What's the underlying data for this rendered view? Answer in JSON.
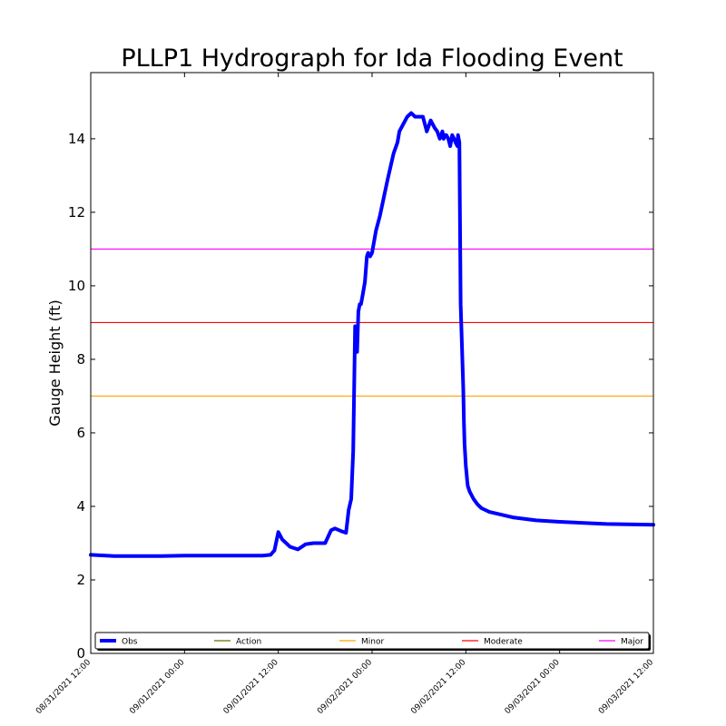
{
  "chart_data": {
    "type": "line",
    "title": "PLLP1 Hydrograph for Ida Flooding Event",
    "xlabel": "",
    "ylabel": "Gauge Height (ft)",
    "xlim": [
      "08/31/2021 12:00",
      "09/03/2021 12:00"
    ],
    "ylim": [
      0,
      15.8
    ],
    "yticks": [
      0,
      2,
      4,
      6,
      8,
      10,
      12,
      14
    ],
    "xticks": [
      "08/31/2021 12:00",
      "09/01/2021 00:00",
      "09/01/2021 12:00",
      "09/02/2021 00:00",
      "09/02/2021 12:00",
      "09/03/2021 00:00",
      "09/03/2021 12:00"
    ],
    "grid": false,
    "legend_position": "bottom",
    "series": [
      {
        "name": "Obs",
        "color": "#0000ff",
        "x": [
          "08/31/2021 12:00",
          "08/31/2021 15:00",
          "08/31/2021 21:00",
          "09/01/2021 00:00",
          "09/01/2021 06:00",
          "09/01/2021 10:00",
          "09/01/2021 11:00",
          "09/01/2021 11:30",
          "09/01/2021 12:00",
          "09/01/2021 12:30",
          "09/01/2021 13:30",
          "09/01/2021 14:30",
          "09/01/2021 15:30",
          "09/01/2021 16:30",
          "09/01/2021 18:00",
          "09/01/2021 18:45",
          "09/01/2021 19:15",
          "09/01/2021 20:00",
          "09/01/2021 20:40",
          "09/01/2021 21:00",
          "09/01/2021 21:20",
          "09/01/2021 21:35",
          "09/01/2021 21:50",
          "09/01/2021 22:05",
          "09/01/2021 22:15",
          "09/01/2021 22:25",
          "09/01/2021 22:35",
          "09/01/2021 22:50",
          "09/01/2021 23:05",
          "09/01/2021 23:20",
          "09/01/2021 23:30",
          "09/01/2021 23:45",
          "09/02/2021 00:00",
          "09/02/2021 00:30",
          "09/02/2021 01:00",
          "09/02/2021 01:30",
          "09/02/2021 02:00",
          "09/02/2021 02:45",
          "09/02/2021 03:15",
          "09/02/2021 03:30",
          "09/02/2021 04:00",
          "09/02/2021 04:30",
          "09/02/2021 05:00",
          "09/02/2021 05:30",
          "09/02/2021 06:00",
          "09/02/2021 06:30",
          "09/02/2021 07:00",
          "09/02/2021 07:30",
          "09/02/2021 08:00",
          "09/02/2021 08:20",
          "09/02/2021 08:40",
          "09/02/2021 09:00",
          "09/02/2021 09:10",
          "09/02/2021 09:20",
          "09/02/2021 09:30",
          "09/02/2021 09:45",
          "09/02/2021 10:00",
          "09/02/2021 10:15",
          "09/02/2021 10:30",
          "09/02/2021 10:40",
          "09/02/2021 10:55",
          "09/02/2021 11:00",
          "09/02/2021 11:10",
          "09/02/2021 11:20",
          "09/02/2021 11:30",
          "09/02/2021 11:40",
          "09/02/2021 11:45",
          "09/02/2021 11:50",
          "09/02/2021 11:55",
          "09/02/2021 12:00",
          "09/02/2021 12:05",
          "09/02/2021 12:10",
          "09/02/2021 12:15",
          "09/02/2021 12:30",
          "09/02/2021 13:00",
          "09/02/2021 13:30",
          "09/02/2021 14:00",
          "09/02/2021 15:00",
          "09/02/2021 16:00",
          "09/02/2021 18:00",
          "09/02/2021 21:00",
          "09/03/2021 00:00",
          "09/03/2021 06:00",
          "09/03/2021 12:00"
        ],
        "y": [
          2.68,
          2.65,
          2.65,
          2.66,
          2.66,
          2.66,
          2.68,
          2.8,
          3.3,
          3.1,
          2.9,
          2.83,
          2.97,
          3.0,
          3.0,
          3.35,
          3.4,
          3.33,
          3.28,
          3.9,
          4.2,
          5.5,
          8.9,
          8.2,
          9.3,
          9.5,
          9.5,
          9.8,
          10.1,
          10.8,
          10.9,
          10.8,
          10.9,
          11.5,
          11.9,
          12.4,
          12.9,
          13.6,
          13.9,
          14.2,
          14.4,
          14.6,
          14.7,
          14.6,
          14.6,
          14.6,
          14.2,
          14.5,
          14.3,
          14.2,
          14.0,
          14.2,
          14.0,
          14.1,
          14.1,
          14.0,
          13.8,
          14.1,
          14.0,
          13.9,
          13.8,
          14.1,
          13.9,
          9.5,
          8.4,
          7.2,
          6.3,
          5.7,
          5.4,
          5.1,
          4.9,
          4.7,
          4.55,
          4.4,
          4.2,
          4.05,
          3.95,
          3.85,
          3.8,
          3.7,
          3.62,
          3.58,
          3.52,
          3.5
        ]
      }
    ],
    "thresholds": [
      {
        "name": "Action",
        "color": "#6b6b00",
        "value": null
      },
      {
        "name": "Minor",
        "color": "#ffa500",
        "value": 7
      },
      {
        "name": "Moderate",
        "color": "#ff0000",
        "value": 9
      },
      {
        "name": "Major",
        "color": "#ff00ff",
        "value": 11
      }
    ]
  }
}
